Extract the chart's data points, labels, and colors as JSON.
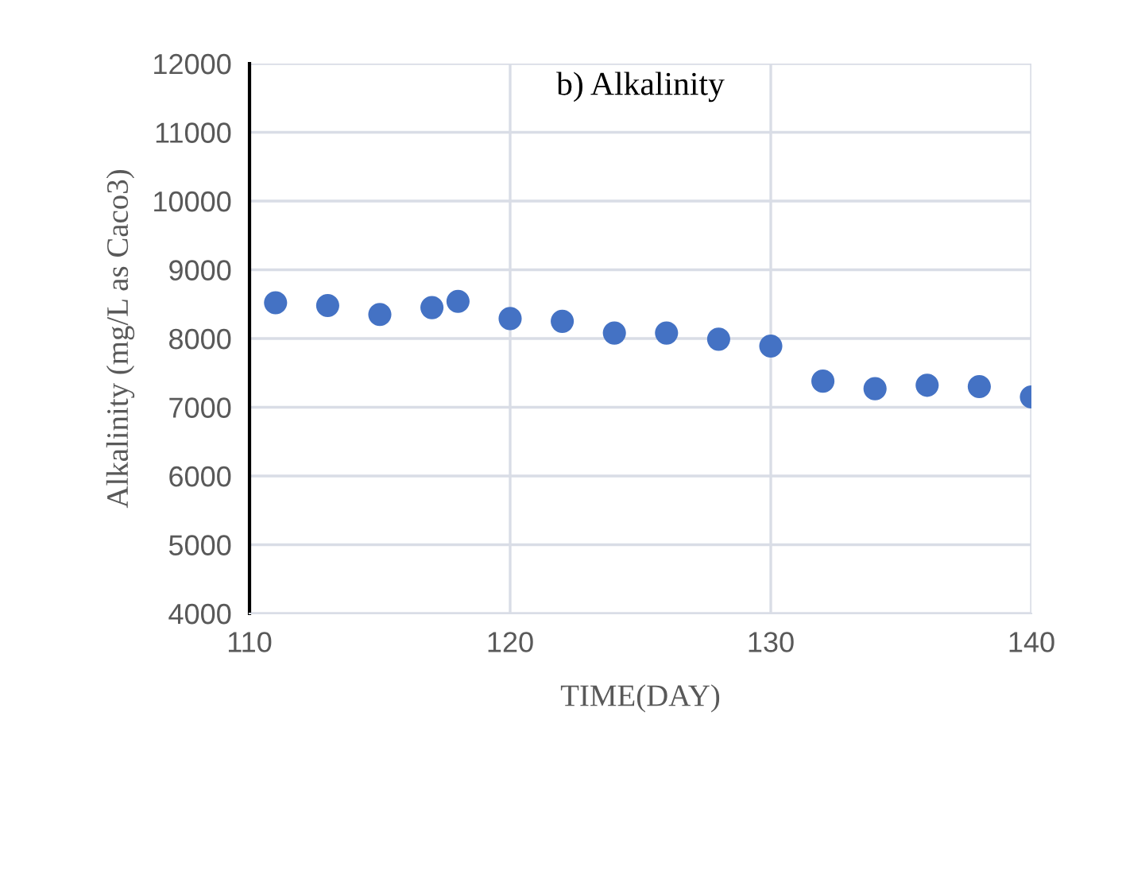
{
  "chart_data": {
    "type": "scatter",
    "title": "b) Alkalinity",
    "xlabel": "TIME(DAY)",
    "ylabel": "Alkalinity (mg/L as Caco3)",
    "x": [
      111,
      113,
      115,
      117,
      118,
      120,
      122,
      124,
      126,
      128,
      130,
      132,
      134,
      136,
      138,
      140
    ],
    "series": [
      {
        "color": "#4472c4",
        "values": [
          8520,
          8480,
          8350,
          8450,
          8540,
          8290,
          8250,
          8080,
          8080,
          7990,
          7890,
          7380,
          7270,
          7320,
          7300,
          7150
        ]
      }
    ],
    "xlim": [
      110,
      140
    ],
    "xticks": [
      110,
      120,
      130,
      140
    ],
    "ylim": [
      4000,
      12000
    ],
    "yticks": [
      4000,
      5000,
      6000,
      7000,
      8000,
      9000,
      10000,
      11000,
      12000
    ],
    "grid": true,
    "marker": "circle"
  }
}
